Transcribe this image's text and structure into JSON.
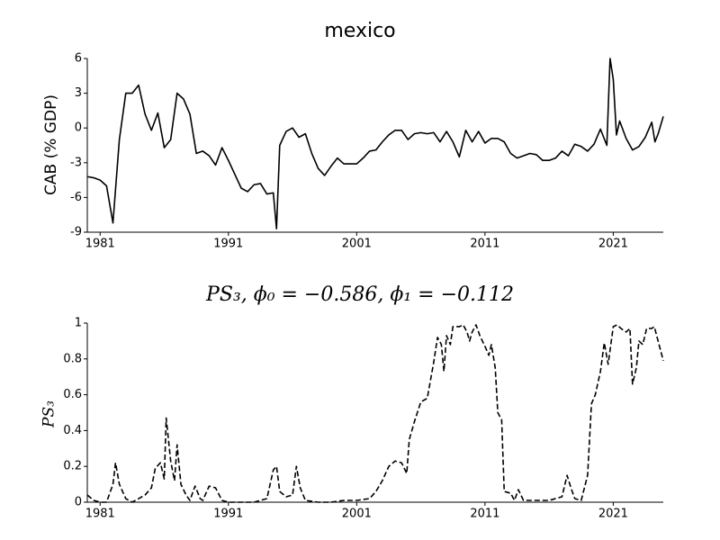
{
  "chart_data": [
    {
      "type": "line",
      "title": "mexico",
      "ylabel": "CAB (% GDP)",
      "line_style": "solid",
      "xlim": [
        1980,
        2024.9
      ],
      "xticks": [
        1981,
        1991,
        2001,
        2011,
        2021
      ],
      "ylim": [
        -9,
        6
      ],
      "yticks": [
        6,
        3,
        0,
        -3,
        -6,
        -9
      ],
      "series": [
        {
          "name": "CAB",
          "color": "#000000",
          "x": [
            1980,
            1980.5,
            1981,
            1981.5,
            1982,
            1982.5,
            1983,
            1983.5,
            1984,
            1984.5,
            1985,
            1985.5,
            1986,
            1986.5,
            1987,
            1987.5,
            1988,
            1988.5,
            1989,
            1989.5,
            1990,
            1990.5,
            1991,
            1991.5,
            1992,
            1992.5,
            1993,
            1993.5,
            1994,
            1994.5,
            1994.75,
            1995,
            1995.5,
            1996,
            1996.5,
            1997,
            1997.5,
            1998,
            1998.5,
            1999,
            1999.5,
            2000,
            2000.5,
            2001,
            2001.5,
            2002,
            2002.5,
            2003,
            2003.5,
            2004,
            2004.5,
            2005,
            2005.5,
            2006,
            2006.5,
            2007,
            2007.5,
            2008,
            2008.5,
            2009,
            2009.5,
            2010,
            2010.5,
            2011,
            2011.5,
            2012,
            2012.5,
            2013,
            2013.5,
            2014,
            2014.5,
            2015,
            2015.5,
            2016,
            2016.5,
            2017,
            2017.5,
            2018,
            2018.5,
            2019,
            2019.5,
            2020,
            2020.5,
            2020.75,
            2021,
            2021.25,
            2021.5,
            2022,
            2022.5,
            2023,
            2023.5,
            2024,
            2024.25,
            2024.5,
            2024.9
          ],
          "values": [
            -4.2,
            -4.3,
            -4.5,
            -5,
            -8.2,
            -1,
            3,
            3,
            3.7,
            1.2,
            -0.2,
            1.3,
            -1.7,
            -1,
            3,
            2.5,
            1.2,
            -2.2,
            -2,
            -2.4,
            -3.2,
            -1.7,
            -2.8,
            -4,
            -5.2,
            -5.5,
            -4.9,
            -4.8,
            -5.7,
            -5.6,
            -8.7,
            -1.5,
            -0.3,
            0,
            -0.8,
            -0.5,
            -2.2,
            -3.5,
            -4.1,
            -3.3,
            -2.6,
            -3.1,
            -3.1,
            -3.1,
            -2.6,
            -2,
            -1.9,
            -1.2,
            -0.6,
            -0.2,
            -0.2,
            -1,
            -0.5,
            -0.4,
            -0.5,
            -0.4,
            -1.2,
            -0.3,
            -1.2,
            -2.5,
            -0.2,
            -1.2,
            -0.3,
            -1.3,
            -0.9,
            -0.9,
            -1.2,
            -2.2,
            -2.6,
            -2.4,
            -2.2,
            -2.3,
            -2.8,
            -2.8,
            -2.6,
            -2,
            -2.4,
            -1.4,
            -1.6,
            -2,
            -1.4,
            -0.1,
            -1.5,
            6,
            4.2,
            -0.6,
            0.6,
            -0.9,
            -1.9,
            -1.6,
            -0.8,
            0.5,
            -1.2,
            -0.5,
            1
          ]
        }
      ]
    },
    {
      "type": "line",
      "title": "PS₃, ϕ₀ = −0.586, ϕ₁ = −0.112",
      "ylabel": "PS₃",
      "line_style": "dashed",
      "xlim": [
        1980,
        2024.9
      ],
      "xticks": [
        1981,
        1991,
        2001,
        2011,
        2021
      ],
      "ylim": [
        0,
        1
      ],
      "yticks": [
        0,
        0.2,
        0.4,
        0.6,
        0.8,
        1
      ],
      "series": [
        {
          "name": "PS₃",
          "color": "#000000",
          "x": [
            1980,
            1980.5,
            1981,
            1981.5,
            1982,
            1982.2,
            1982.5,
            1983,
            1983.5,
            1984,
            1984.5,
            1985,
            1985.3,
            1985.7,
            1986,
            1986.15,
            1986.5,
            1986.8,
            1987,
            1987.3,
            1987.7,
            1988,
            1988.4,
            1988.8,
            1989,
            1989.5,
            1990,
            1990.5,
            1991,
            1992,
            1993,
            1993.5,
            1994,
            1994.5,
            1994.75,
            1995,
            1995.5,
            1996,
            1996.3,
            1996.6,
            1997,
            1998,
            1999,
            2000,
            2001,
            2002,
            2002.5,
            2003,
            2003.5,
            2004,
            2004.5,
            2004.9,
            2005.1,
            2005.5,
            2006,
            2006.5,
            2007,
            2007.3,
            2007.6,
            2007.8,
            2008,
            2008.3,
            2008.5,
            2009,
            2009.3,
            2009.6,
            2009.8,
            2010,
            2010.3,
            2010.6,
            2011,
            2011.3,
            2011.5,
            2011.8,
            2012,
            2012.3,
            2012.5,
            2013,
            2013.3,
            2013.6,
            2014,
            2015,
            2016,
            2017,
            2017.4,
            2017.7,
            2018,
            2018.5,
            2019,
            2019.3,
            2019.6,
            2020,
            2020.3,
            2020.6,
            2021,
            2021.3,
            2021.6,
            2022,
            2022.3,
            2022.5,
            2022.8,
            2023,
            2023.3,
            2023.6,
            2024,
            2024.2,
            2024.9
          ],
          "values": [
            0.04,
            0.01,
            0,
            0,
            0.1,
            0.22,
            0.1,
            0.02,
            0,
            0.02,
            0.04,
            0.08,
            0.19,
            0.22,
            0.13,
            0.47,
            0.23,
            0.12,
            0.32,
            0.1,
            0.04,
            0.01,
            0.09,
            0.02,
            0.01,
            0.09,
            0.08,
            0.01,
            0,
            0,
            0,
            0.01,
            0.02,
            0.18,
            0.2,
            0.06,
            0.03,
            0.04,
            0.2,
            0.08,
            0.01,
            0,
            0,
            0.01,
            0.01,
            0.02,
            0.06,
            0.12,
            0.2,
            0.23,
            0.22,
            0.16,
            0.35,
            0.45,
            0.56,
            0.58,
            0.78,
            0.92,
            0.88,
            0.73,
            0.93,
            0.88,
            0.98,
            0.98,
            0.99,
            0.95,
            0.9,
            0.95,
            0.99,
            0.93,
            0.87,
            0.82,
            0.88,
            0.75,
            0.5,
            0.46,
            0.06,
            0.05,
            0.01,
            0.07,
            0.01,
            0.01,
            0.01,
            0.03,
            0.15,
            0.08,
            0.02,
            0.01,
            0.15,
            0.55,
            0.6,
            0.73,
            0.89,
            0.77,
            0.98,
            0.99,
            0.97,
            0.95,
            0.97,
            0.66,
            0.75,
            0.9,
            0.88,
            0.97,
            0.97,
            0.98,
            0.79
          ]
        }
      ]
    }
  ]
}
